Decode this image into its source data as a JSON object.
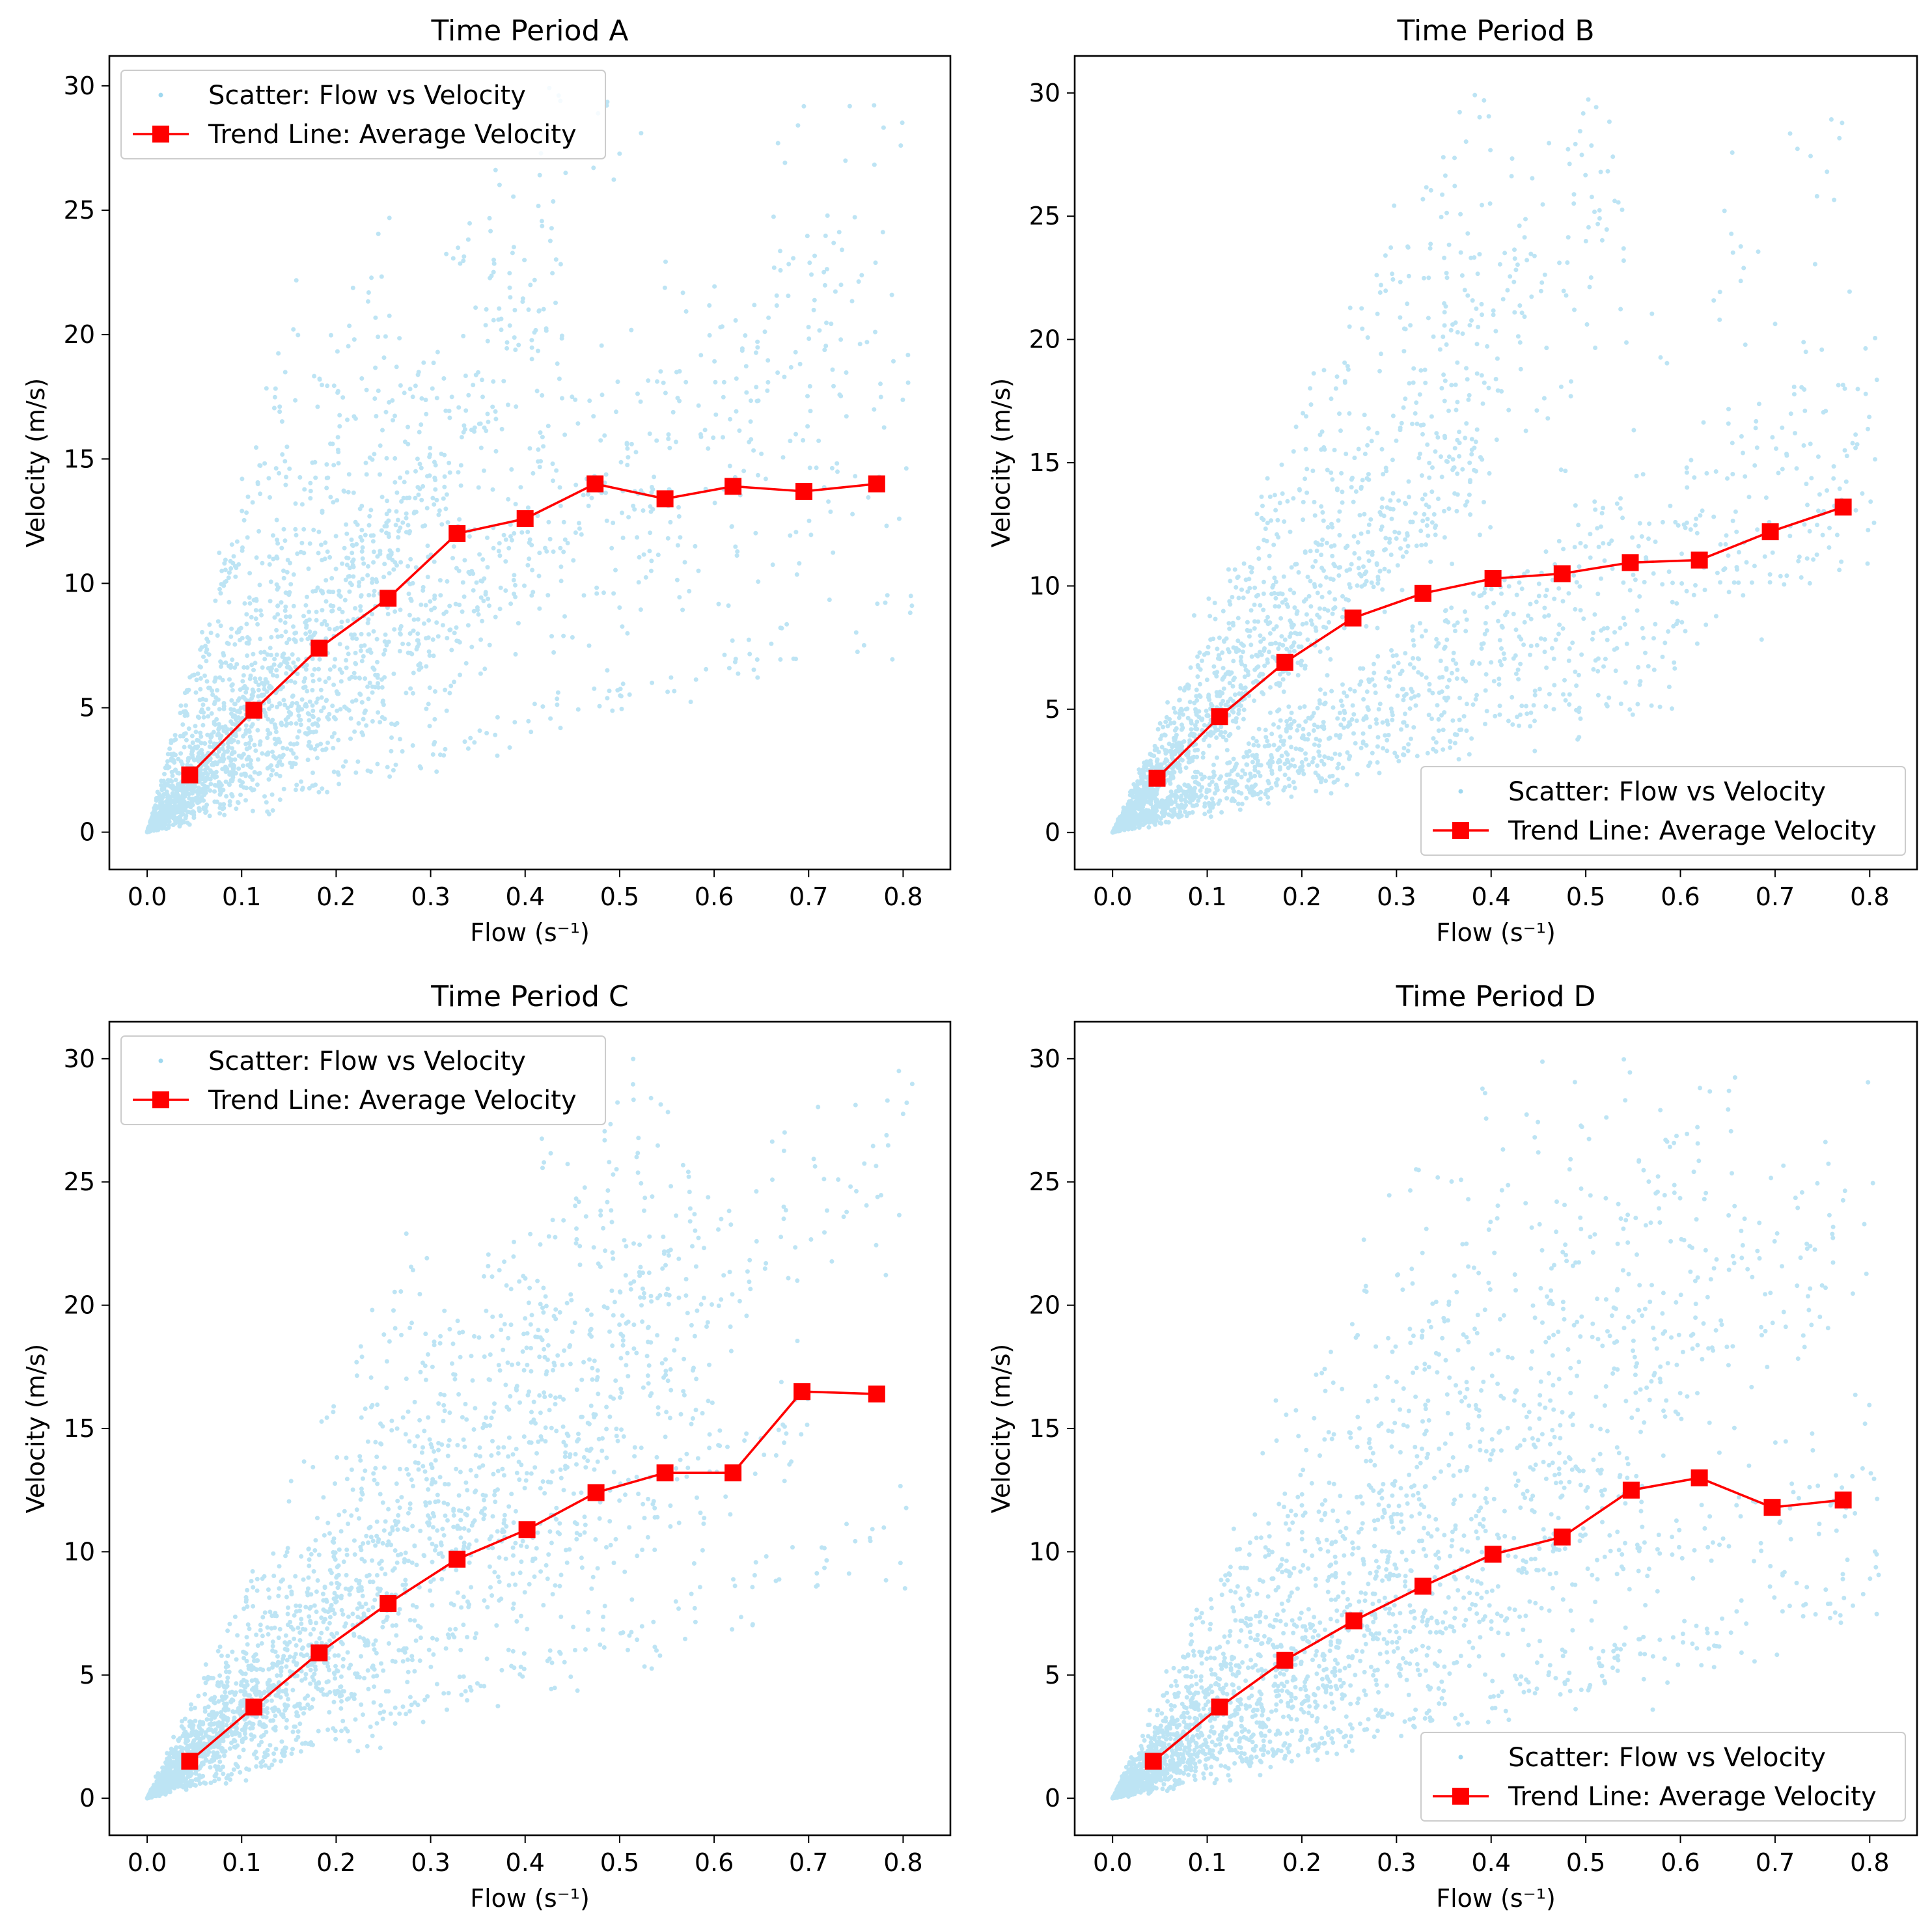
{
  "figure": {
    "colors": {
      "scatter": "#87CEEB",
      "trend": "#FF0000",
      "axes": "#000000",
      "legend_border": "#CCCCCC"
    }
  },
  "chart_data": [
    {
      "type": "scatter",
      "title": "Time Period A",
      "xlabel": "Flow (s⁻¹)",
      "ylabel": "Velocity (m/s)",
      "xlim": [
        -0.04,
        0.85
      ],
      "ylim": [
        -1.5,
        31.2
      ],
      "xticks": [
        0.0,
        0.1,
        0.2,
        0.3,
        0.4,
        0.5,
        0.6,
        0.7,
        0.8
      ],
      "xtick_labels": [
        "0.0",
        "0.1",
        "0.2",
        "0.3",
        "0.4",
        "0.5",
        "0.6",
        "0.7",
        "0.8"
      ],
      "yticks": [
        0,
        5,
        10,
        15,
        20,
        25,
        30
      ],
      "ytick_labels": [
        "0",
        "5",
        "10",
        "15",
        "20",
        "25",
        "30"
      ],
      "grid": false,
      "legend": {
        "location": "upper-left",
        "entries": [
          "Scatter: Flow vs Velocity",
          "Trend Line: Average Velocity"
        ]
      },
      "series": [
        {
          "name": "Trend Line: Average Velocity",
          "kind": "line-marker",
          "x": [
            0.045,
            0.113,
            0.182,
            0.255,
            0.328,
            0.4,
            0.474,
            0.548,
            0.62,
            0.695,
            0.772
          ],
          "y": [
            2.3,
            4.9,
            7.4,
            9.4,
            12.0,
            12.6,
            14.0,
            13.4,
            13.9,
            13.7,
            14.0
          ]
        },
        {
          "name": "Scatter: Flow vs Velocity",
          "kind": "scatter-cloud",
          "x_range": [
            0.0,
            0.81
          ],
          "y_range": [
            0.0,
            30.0
          ],
          "rays": [
            {
              "slope": 118,
              "xmax": 0.16,
              "weight": 0.06
            },
            {
              "slope": 82,
              "xmax": 0.26,
              "weight": 0.08
            },
            {
              "slope": 62,
              "xmax": 0.55,
              "weight": 0.11
            },
            {
              "slope": 48,
              "xmax": 0.44,
              "weight": 0.18
            },
            {
              "slope": 44,
              "xmax": 0.32,
              "weight": 0.12
            },
            {
              "slope": 33,
              "xmax": 0.8,
              "weight": 0.14
            },
            {
              "slope": 28,
              "xmax": 0.74,
              "weight": 0.1
            },
            {
              "slope": 24.5,
              "xmax": 0.81,
              "weight": 0.09
            },
            {
              "slope": 18.5,
              "xmax": 0.81,
              "weight": 0.07
            },
            {
              "slope": 11,
              "xmax": 0.81,
              "weight": 0.05
            }
          ]
        }
      ]
    },
    {
      "type": "scatter",
      "title": "Time Period B",
      "xlabel": "Flow (s⁻¹)",
      "ylabel": "Velocity (m/s)",
      "xlim": [
        -0.04,
        0.85
      ],
      "ylim": [
        -1.5,
        31.5
      ],
      "xticks": [
        0.0,
        0.1,
        0.2,
        0.3,
        0.4,
        0.5,
        0.6,
        0.7,
        0.8
      ],
      "xtick_labels": [
        "0.0",
        "0.1",
        "0.2",
        "0.3",
        "0.4",
        "0.5",
        "0.6",
        "0.7",
        "0.8"
      ],
      "yticks": [
        0,
        5,
        10,
        15,
        20,
        25,
        30
      ],
      "ytick_labels": [
        "0",
        "5",
        "10",
        "15",
        "20",
        "25",
        "30"
      ],
      "grid": false,
      "legend": {
        "location": "lower-right",
        "entries": [
          "Scatter: Flow vs Velocity",
          "Trend Line: Average Velocity"
        ]
      },
      "series": [
        {
          "name": "Trend Line: Average Velocity",
          "kind": "line-marker",
          "x": [
            0.047,
            0.113,
            0.182,
            0.254,
            0.328,
            0.402,
            0.475,
            0.547,
            0.62,
            0.695,
            0.772
          ],
          "y": [
            2.2,
            4.7,
            6.9,
            8.7,
            9.7,
            10.3,
            10.5,
            10.95,
            11.05,
            12.2,
            13.2
          ]
        },
        {
          "name": "Scatter: Flow vs Velocity",
          "kind": "scatter-cloud",
          "x_range": [
            0.0,
            0.81
          ],
          "y_range": [
            0.0,
            30.0
          ],
          "rays": [
            {
              "slope": 72,
              "xmax": 0.4,
              "weight": 0.12
            },
            {
              "slope": 52,
              "xmax": 0.55,
              "weight": 0.2
            },
            {
              "slope": 40,
              "xmax": 0.4,
              "weight": 0.18
            },
            {
              "slope": 36,
              "xmax": 0.8,
              "weight": 0.04
            },
            {
              "slope": 22,
              "xmax": 0.81,
              "weight": 0.2
            },
            {
              "slope": 16,
              "xmax": 0.81,
              "weight": 0.16
            },
            {
              "slope": 11,
              "xmax": 0.6,
              "weight": 0.1
            }
          ]
        }
      ]
    },
    {
      "type": "scatter",
      "title": "Time Period C",
      "xlabel": "Flow (s⁻¹)",
      "ylabel": "Velocity (m/s)",
      "xlim": [
        -0.04,
        0.85
      ],
      "ylim": [
        -1.5,
        31.5
      ],
      "xticks": [
        0.0,
        0.1,
        0.2,
        0.3,
        0.4,
        0.5,
        0.6,
        0.7,
        0.8
      ],
      "xtick_labels": [
        "0.0",
        "0.1",
        "0.2",
        "0.3",
        "0.4",
        "0.5",
        "0.6",
        "0.7",
        "0.8"
      ],
      "yticks": [
        0,
        5,
        10,
        15,
        20,
        25,
        30
      ],
      "ytick_labels": [
        "0",
        "5",
        "10",
        "15",
        "20",
        "25",
        "30"
      ],
      "grid": false,
      "legend": {
        "location": "upper-left",
        "entries": [
          "Scatter: Flow vs Velocity",
          "Trend Line: Average Velocity"
        ]
      },
      "series": [
        {
          "name": "Trend Line: Average Velocity",
          "kind": "line-marker",
          "x": [
            0.045,
            0.113,
            0.182,
            0.255,
            0.328,
            0.402,
            0.475,
            0.548,
            0.62,
            0.693,
            0.772
          ],
          "y": [
            1.5,
            3.7,
            5.9,
            7.9,
            9.7,
            10.9,
            12.4,
            13.2,
            13.2,
            16.5,
            16.4
          ]
        },
        {
          "name": "Scatter: Flow vs Velocity",
          "kind": "scatter-cloud",
          "x_range": [
            0.0,
            0.81
          ],
          "y_range": [
            0.0,
            30.0
          ],
          "rays": [
            {
              "slope": 72,
              "xmax": 0.3,
              "weight": 0.06
            },
            {
              "slope": 52,
              "xmax": 0.52,
              "weight": 0.16
            },
            {
              "slope": 42,
              "xmax": 0.58,
              "weight": 0.22
            },
            {
              "slope": 35,
              "xmax": 0.81,
              "weight": 0.14
            },
            {
              "slope": 30,
              "xmax": 0.6,
              "weight": 0.18
            },
            {
              "slope": 22,
              "xmax": 0.7,
              "weight": 0.14
            },
            {
              "slope": 13,
              "xmax": 0.81,
              "weight": 0.1
            }
          ]
        }
      ]
    },
    {
      "type": "scatter",
      "title": "Time Period D",
      "xlabel": "Flow (s⁻¹)",
      "ylabel": "Velocity (m/s)",
      "xlim": [
        -0.04,
        0.85
      ],
      "ylim": [
        -1.5,
        31.5
      ],
      "xticks": [
        0.0,
        0.1,
        0.2,
        0.3,
        0.4,
        0.5,
        0.6,
        0.7,
        0.8
      ],
      "xtick_labels": [
        "0.0",
        "0.1",
        "0.2",
        "0.3",
        "0.4",
        "0.5",
        "0.6",
        "0.7",
        "0.8"
      ],
      "yticks": [
        0,
        5,
        10,
        15,
        20,
        25,
        30
      ],
      "ytick_labels": [
        "0",
        "5",
        "10",
        "15",
        "20",
        "25",
        "30"
      ],
      "grid": false,
      "legend": {
        "location": "lower-right",
        "entries": [
          "Scatter: Flow vs Velocity",
          "Trend Line: Average Velocity"
        ]
      },
      "series": [
        {
          "name": "Trend Line: Average Velocity",
          "kind": "line-marker",
          "x": [
            0.043,
            0.113,
            0.182,
            0.255,
            0.328,
            0.402,
            0.475,
            0.548,
            0.62,
            0.697,
            0.772
          ],
          "y": [
            1.5,
            3.7,
            5.6,
            7.2,
            8.6,
            9.9,
            10.6,
            12.5,
            13.0,
            11.8,
            12.1
          ]
        },
        {
          "name": "Scatter: Flow vs Velocity",
          "kind": "scatter-cloud",
          "x_range": [
            0.0,
            0.81
          ],
          "y_range": [
            0.0,
            30.0
          ],
          "rays": [
            {
              "slope": 70,
              "xmax": 0.42,
              "weight": 0.08
            },
            {
              "slope": 52,
              "xmax": 0.55,
              "weight": 0.12
            },
            {
              "slope": 40,
              "xmax": 0.66,
              "weight": 0.2
            },
            {
              "slope": 30,
              "xmax": 0.81,
              "weight": 0.2
            },
            {
              "slope": 22,
              "xmax": 0.56,
              "weight": 0.16
            },
            {
              "slope": 17,
              "xmax": 0.81,
              "weight": 0.12
            },
            {
              "slope": 10.5,
              "xmax": 0.81,
              "weight": 0.12
            }
          ]
        }
      ]
    }
  ]
}
